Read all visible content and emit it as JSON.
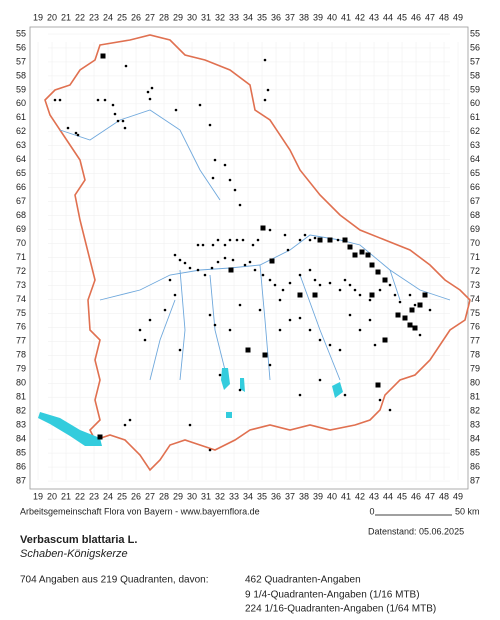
{
  "map": {
    "x_labels": [
      19,
      20,
      21,
      22,
      23,
      24,
      25,
      26,
      27,
      28,
      29,
      30,
      31,
      32,
      33,
      34,
      35,
      36,
      37,
      38,
      39,
      40,
      41,
      42,
      43,
      44,
      45,
      46,
      47,
      48,
      49
    ],
    "y_labels": [
      55,
      56,
      57,
      58,
      59,
      60,
      61,
      62,
      63,
      64,
      65,
      66,
      67,
      68,
      69,
      70,
      71,
      72,
      73,
      74,
      75,
      76,
      77,
      78,
      79,
      80,
      81,
      82,
      83,
      84,
      85,
      86,
      87
    ]
  },
  "footer": {
    "credit": "Arbeitsgemeinschaft Flora von Bayern - www.bayernflora.de",
    "scale_start": "0",
    "scale_end": "50 km",
    "date": "Datenstand: 05.06.2025",
    "species": "Verbascum blattaria L.",
    "common_name": "Schaben-Königskerze",
    "summary": "704 Angaben aus 219 Quadranten, davon:",
    "counts": [
      "462 Quadranten-Angaben",
      "9 1/4-Quadranten-Angaben (1/16 MTB)",
      "224 1/16-Quadranten-Angaben (1/64 MTB)"
    ]
  }
}
